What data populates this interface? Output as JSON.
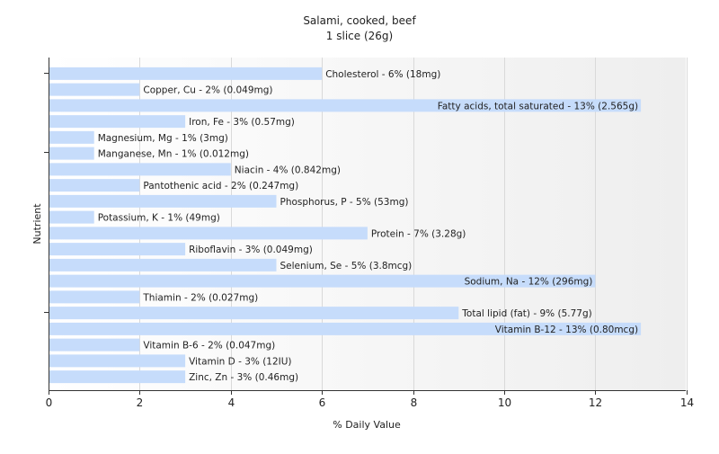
{
  "chart_data": {
    "type": "bar",
    "orientation": "horizontal",
    "title": "Salami, cooked, beef",
    "subtitle": "1 slice (26g)",
    "xlabel": "% Daily Value",
    "ylabel": "Nutrient",
    "xlim": [
      0,
      14
    ],
    "xticks": [
      "0",
      "2",
      "4",
      "6",
      "8",
      "10",
      "12",
      "14"
    ],
    "grid": "vertical",
    "bar_color": "#c6dcfb",
    "categories": [
      "Cholesterol",
      "Copper, Cu",
      "Fatty acids, total saturated",
      "Iron, Fe",
      "Magnesium, Mg",
      "Manganese, Mn",
      "Niacin",
      "Pantothenic acid",
      "Phosphorus, P",
      "Potassium, K",
      "Protein",
      "Riboflavin",
      "Selenium, Se",
      "Sodium, Na",
      "Thiamin",
      "Total lipid (fat)",
      "Vitamin B-12",
      "Vitamin B-6",
      "Vitamin D",
      "Zinc, Zn"
    ],
    "values": [
      6,
      2,
      13,
      3,
      1,
      1,
      4,
      2,
      5,
      1,
      7,
      3,
      5,
      12,
      2,
      9,
      13,
      2,
      3,
      3
    ],
    "labels": [
      "Cholesterol - 6% (18mg)",
      "Copper, Cu - 2% (0.049mg)",
      "Fatty acids, total saturated - 13% (2.565g)",
      "Iron, Fe - 3% (0.57mg)",
      "Magnesium, Mg - 1% (3mg)",
      "Manganese, Mn - 1% (0.012mg)",
      "Niacin - 4% (0.842mg)",
      "Pantothenic acid - 2% (0.247mg)",
      "Phosphorus, P - 5% (53mg)",
      "Potassium, K - 1% (49mg)",
      "Protein - 7% (3.28g)",
      "Riboflavin - 3% (0.049mg)",
      "Selenium, Se - 5% (3.8mcg)",
      "Sodium, Na - 12% (296mg)",
      "Thiamin - 2% (0.027mg)",
      "Total lipid (fat) - 9% (5.77g)",
      "Vitamin B-12 - 13% (0.80mcg)",
      "Vitamin B-6 - 2% (0.047mg)",
      "Vitamin D - 3% (12IU)",
      "Zinc, Zn - 3% (0.46mg)"
    ],
    "label_inside": [
      false,
      false,
      true,
      false,
      false,
      false,
      false,
      false,
      false,
      false,
      false,
      false,
      false,
      true,
      false,
      false,
      true,
      false,
      false,
      false
    ]
  }
}
